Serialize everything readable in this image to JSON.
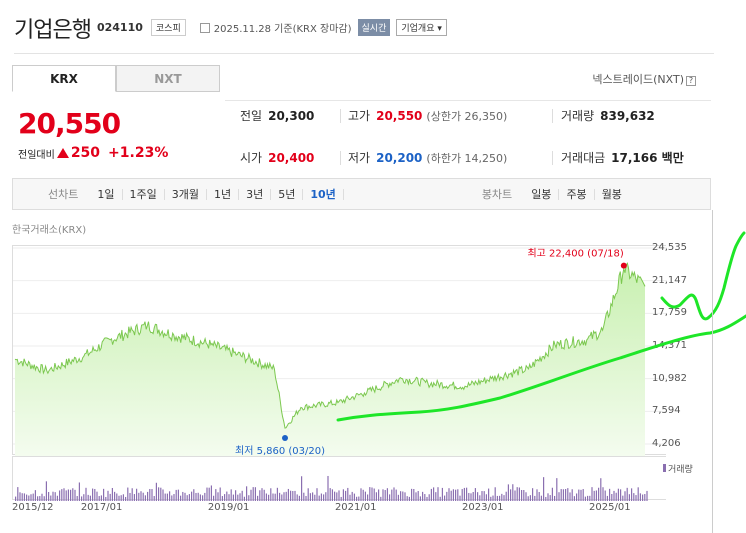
{
  "header": {
    "name": "기업은행",
    "code": "024110",
    "market": "코스피",
    "date": "2025.11.28 기준(KRX 장마감)",
    "realtime": "실시간",
    "company": "기업개요 ▾"
  },
  "tabs": [
    "KRX",
    "NXT"
  ],
  "nextrade": "넥스트레이드(NXT)",
  "price": "20,550",
  "change": {
    "label": "전일대비",
    "value": "250",
    "percent": "+1.23%"
  },
  "quote": {
    "prev_label": "전일",
    "prev": "20,300",
    "high_label": "고가",
    "high": "20,550",
    "upper": "(상한가 26,350)",
    "volume_label": "거래량",
    "volume": "839,632",
    "open_label": "시가",
    "open": "20,400",
    "low_label": "저가",
    "low": "20,200",
    "lower": "(하한가 14,250)",
    "amount_label": "거래대금",
    "amount": "17,166 백만"
  },
  "toolbar": {
    "line_label": "선차트",
    "line_items": [
      "1일",
      "1주일",
      "3개월",
      "1년",
      "3년",
      "5년",
      "10년"
    ],
    "line_selected": "10년",
    "candle_label": "봉차트",
    "candle_items": [
      "일봉",
      "주봉",
      "월봉"
    ]
  },
  "chart_source": "한국거래소(KRX)",
  "chart_data": {
    "type": "area",
    "y_ticks": [
      "24,535",
      "21,147",
      "17,759",
      "14,371",
      "10,982",
      "7,594",
      "4,206"
    ],
    "ylim": [
      4206,
      24535
    ],
    "x_ticks": [
      "2015/12",
      "2017/01",
      "2019/01",
      "2021/01",
      "2023/01",
      "2025/01"
    ],
    "high_label": "최고 22,400 (07/18)",
    "low_label": "최저 5,860 (03/20)",
    "volume_legend": "거래량",
    "series": [
      {
        "x": [
          "2015/12",
          "2016/06",
          "2017/01",
          "2017/06",
          "2018/01",
          "2018/06",
          "2019/01",
          "2019/06",
          "2020/01",
          "2020/03",
          "2020/06",
          "2021/01",
          "2021/06",
          "2022/01",
          "2022/06",
          "2023/01",
          "2023/06",
          "2024/01",
          "2024/06",
          "2024/12",
          "2025/03",
          "2025/07",
          "2025/11"
        ],
        "values": [
          13000,
          11800,
          13300,
          15000,
          16500,
          15500,
          14500,
          13500,
          12000,
          5860,
          8000,
          8500,
          9500,
          11000,
          10500,
          10200,
          11000,
          12000,
          14500,
          15000,
          16000,
          22400,
          20550
        ]
      }
    ],
    "colors": {
      "area": "#c8f0b0",
      "line": "#7cc850",
      "overlay": "#1ee628",
      "up": "#e2001a",
      "down": "#1c62c6",
      "volume": "#8a6fb0"
    }
  }
}
